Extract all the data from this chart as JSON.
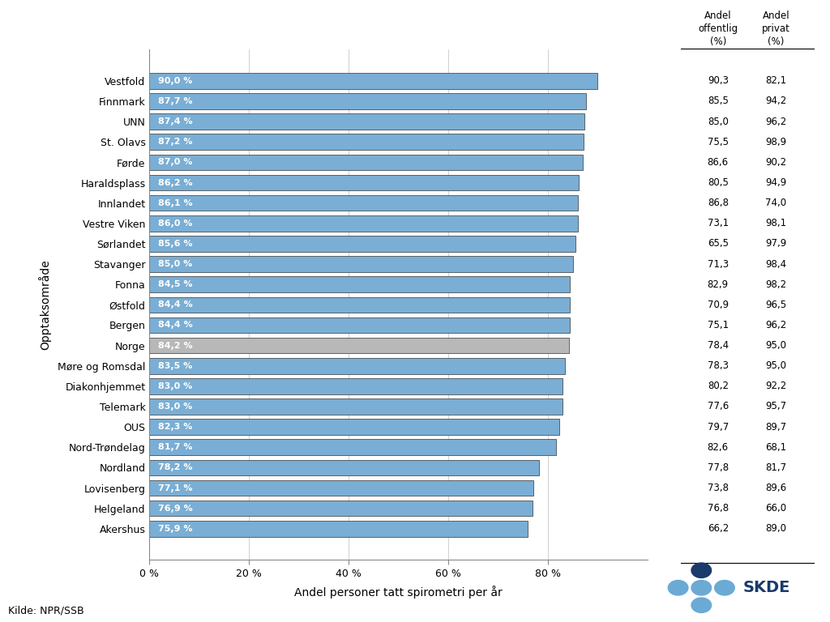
{
  "categories": [
    "Vestfold",
    "Finnmark",
    "UNN",
    "St. Olavs",
    "Førde",
    "Haraldsplass",
    "Innlandet",
    "Vestre Viken",
    "Sørlandet",
    "Stavanger",
    "Fonna",
    "Østfold",
    "Bergen",
    "Norge",
    "Møre og Romsdal",
    "Diakonhjemmet",
    "Telemark",
    "OUS",
    "Nord-Trøndelag",
    "Nordland",
    "Lovisenberg",
    "Helgeland",
    "Akershus"
  ],
  "values": [
    90.0,
    87.7,
    87.4,
    87.2,
    87.0,
    86.2,
    86.1,
    86.0,
    85.6,
    85.0,
    84.5,
    84.4,
    84.4,
    84.2,
    83.5,
    83.0,
    83.0,
    82.3,
    81.7,
    78.2,
    77.1,
    76.9,
    75.9
  ],
  "bar_labels": [
    "90,0 %",
    "87,7 %",
    "87,4 %",
    "87,2 %",
    "87,0 %",
    "86,2 %",
    "86,1 %",
    "86,0 %",
    "85,6 %",
    "85,0 %",
    "84,5 %",
    "84,4 %",
    "84,4 %",
    "84,2 %",
    "83,5 %",
    "83,0 %",
    "83,0 %",
    "82,3 %",
    "81,7 %",
    "78,2 %",
    "77,1 %",
    "76,9 %",
    "75,9 %"
  ],
  "is_norge": [
    false,
    false,
    false,
    false,
    false,
    false,
    false,
    false,
    false,
    false,
    false,
    false,
    false,
    true,
    false,
    false,
    false,
    false,
    false,
    false,
    false,
    false,
    false
  ],
  "bar_color_normal": "#7aaed4",
  "bar_color_norge": "#b8b8b8",
  "bar_edge_color": "#333333",
  "text_color_bar": "#ffffff",
  "andel_offentlig": [
    90.3,
    85.5,
    85.0,
    75.5,
    86.6,
    80.5,
    86.8,
    73.1,
    65.5,
    71.3,
    82.9,
    70.9,
    75.1,
    78.4,
    78.3,
    80.2,
    77.6,
    79.7,
    82.6,
    77.8,
    73.8,
    76.8,
    66.2
  ],
  "andel_privat": [
    82.1,
    94.2,
    96.2,
    98.9,
    90.2,
    94.9,
    74.0,
    98.1,
    97.9,
    98.4,
    98.2,
    96.5,
    96.2,
    95.0,
    95.0,
    92.2,
    95.7,
    89.7,
    68.1,
    81.7,
    89.6,
    66.0,
    89.0
  ],
  "xlabel": "Andel personer tatt spirometri per år",
  "ylabel": "Opptaksområde",
  "xlim": [
    0,
    100
  ],
  "xtick_values": [
    0,
    20,
    40,
    60,
    80
  ],
  "xtick_labels": [
    "0 %",
    "20 %",
    "40 %",
    "60 %",
    "80 %"
  ],
  "col_header1": "Andel\noffentlig\n(%)",
  "col_header2": "Andel\nprivat\n(%)",
  "source_text": "Kilde: NPR/SSB",
  "background_color": "#ffffff",
  "grid_color": "#d0d0d0",
  "skde_dark": "#1a3a6b",
  "skde_light": "#6aaad4"
}
